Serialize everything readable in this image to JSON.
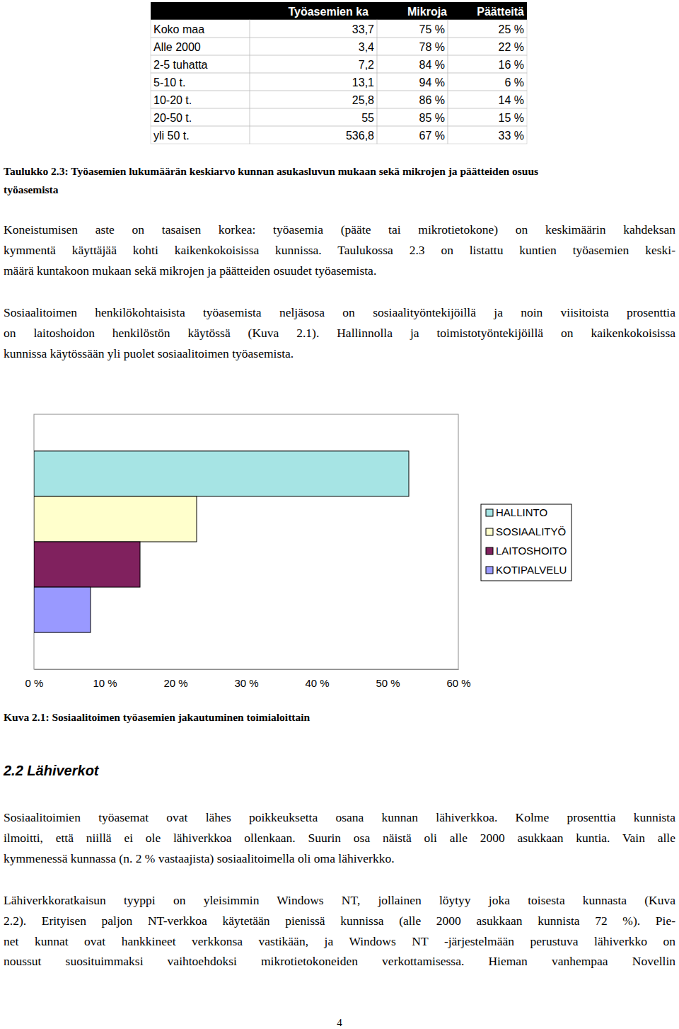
{
  "table": {
    "header": [
      "Työasemien ka",
      "Mikroja",
      "Päätteitä"
    ],
    "rows": [
      [
        "Koko maa",
        "33,7",
        "75 %",
        "25 %"
      ],
      [
        "Alle 2000",
        "3,4",
        "78 %",
        "22 %"
      ],
      [
        "2-5 tuhatta",
        "7,2",
        "84 %",
        "16 %"
      ],
      [
        "5-10 t.",
        "13,1",
        "94 %",
        "6 %"
      ],
      [
        "10-20 t.",
        "25,8",
        "86 %",
        "14 %"
      ],
      [
        "20-50 t.",
        "55",
        "85 %",
        "15 %"
      ],
      [
        "yli 50 t.",
        "536,8",
        "67 %",
        "33 %"
      ]
    ]
  },
  "table_caption": [
    "Taulukko 2.3: Työasemien lukumäärän keskiarvo kunnan asukasluvun mukaan sekä mikrojen ja päätteiden osuus",
    "työasemista"
  ],
  "paragraphs": [
    [
      "Koneistumisen aste on tasaisen korkea: työasemia (pääte tai mikrotietokone) on keskimäärin kahdeksan",
      "kymmentä käyttäjää kohti kaikenkokoisissa kunnissa. Taulukossa 2.3 on listattu kuntien työasemien keski-",
      "määrä kuntakoon mukaan sekä mikrojen ja päätteiden osuudet työasemista."
    ],
    [
      "Sosiaalitoimen henkilökohtaisista työasemista neljäsosa on sosiaalityöntekijöillä ja noin viisitoista prosenttia",
      "on laitoshoidon henkilöstön käytössä (Kuva 2.1). Hallinnolla ja toimistotyöntekijöillä on kaikenkokoisissa",
      "kunnissa käytössään yli puolet sosiaalitoimen työasemista."
    ]
  ],
  "chart_data": {
    "type": "bar",
    "orientation": "horizontal",
    "categories": [
      "HALLINTO",
      "SOSIAALITYÖ",
      "LAITOSHOITO",
      "KOTIPALVELU"
    ],
    "values": [
      53,
      23,
      15,
      8
    ],
    "colors": [
      "#a6e4e4",
      "#ffffcc",
      "#80215e",
      "#9999ff"
    ],
    "xlim": [
      0,
      60
    ],
    "xticks": [
      {
        "value": 0,
        "label": "0 %"
      },
      {
        "value": 10,
        "label": "10 %"
      },
      {
        "value": 20,
        "label": "20 %"
      },
      {
        "value": 30,
        "label": "30 %"
      },
      {
        "value": 40,
        "label": "40 %"
      },
      {
        "value": 50,
        "label": "50 %"
      },
      {
        "value": 60,
        "label": "60 %"
      }
    ],
    "legend": "right",
    "tick_labels": "x"
  },
  "chart_caption": "Kuva 2.1: Sosiaalitoimen työasemien jakautuminen toimialoittain",
  "section_heading": "2.2 Lähiverkot",
  "paragraphs_2": [
    [
      "Sosiaalitoimien työasemat ovat lähes poikkeuksetta osana kunnan lähiverkkoa. Kolme prosenttia kunnista",
      "ilmoitti, että niillä ei ole lähiverkkoa ollenkaan. Suurin osa näistä oli alle 2000 asukkaan kuntia. Vain alle",
      "kymmenessä kunnassa (n. 2 % vastaajista) sosiaalitoimella oli oma lähiverkko."
    ],
    [
      "Lähiverkkoratkaisun tyyppi on yleisimmin Windows NT, jollainen löytyy joka toisesta kunnasta (Kuva",
      "2.2). Erityisen paljon NT-verkkoa käytetään pienissä kunnissa (alle 2000 asukkaan kunnista 72 %). Pie-",
      "net kunnat ovat hankkineet verkkonsa vastikään, ja Windows NT -järjestelmään perustuva lähiverkko on",
      "noussut suosituimmaksi vaihtoehdoksi mikrotietokoneiden verkottamisessa. Hieman vanhempaa Novellin"
    ]
  ],
  "page_number": "4"
}
